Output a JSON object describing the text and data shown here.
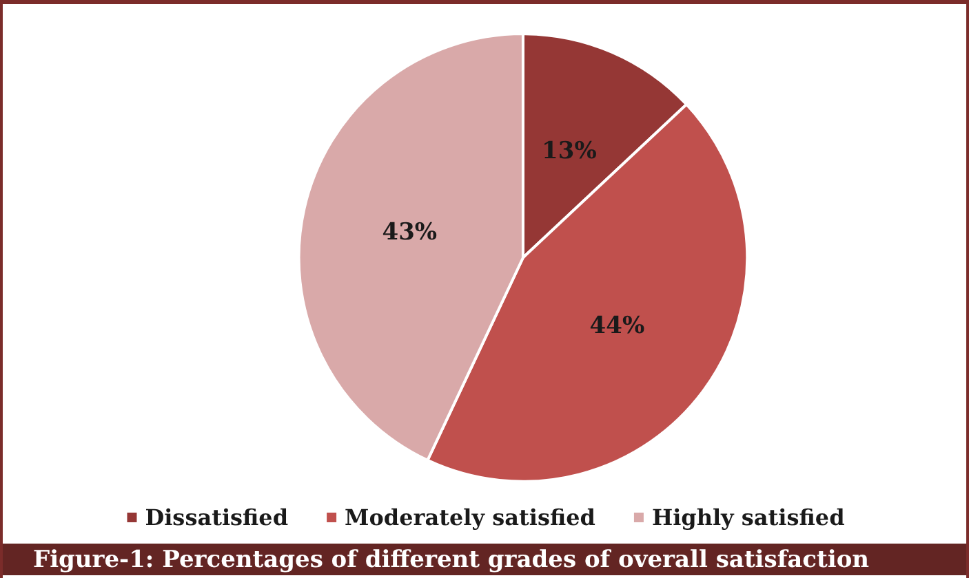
{
  "chart_data": {
    "type": "pie",
    "categories": [
      "Dissatisfied",
      "Moderately satisfied",
      "Highly satisfied"
    ],
    "values": [
      13,
      44,
      43
    ],
    "value_labels": [
      "13%",
      "44%",
      "43%"
    ],
    "colors": [
      "#953735",
      "#c0504d",
      "#d9a9a9"
    ],
    "legend": "bottom",
    "annotations": [
      "Figure-1: Percentages of different grades of overall satisfaction"
    ]
  }
}
